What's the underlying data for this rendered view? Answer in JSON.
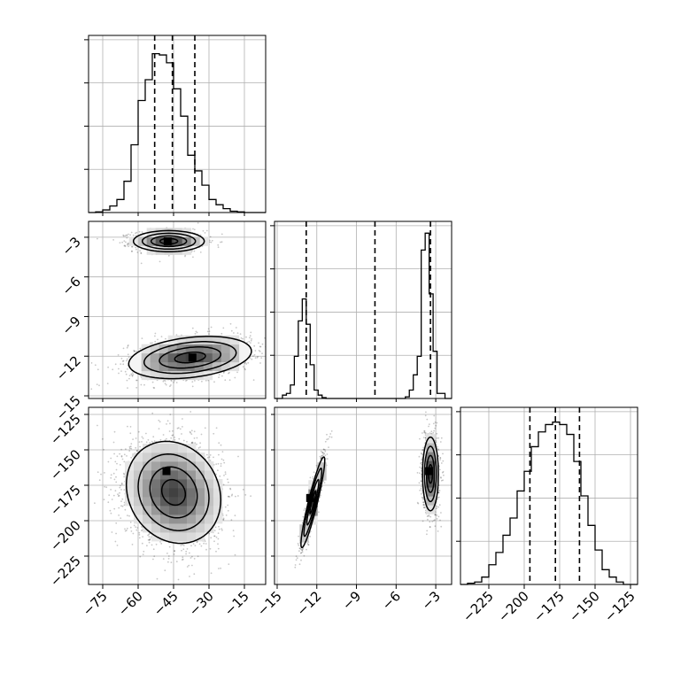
{
  "chart_data": {
    "type": "corner",
    "parameters": [
      {
        "ticks": [
          -75,
          -60,
          -45,
          -30,
          -15
        ],
        "range": [
          -81,
          -6
        ]
      },
      {
        "ticks": [
          -15,
          -12,
          -9,
          -6,
          -3
        ],
        "range": [
          -15.2,
          -1.8
        ]
      },
      {
        "ticks": [
          -225,
          -200,
          -175,
          -150,
          -125
        ],
        "range": [
          -245,
          -120
        ]
      }
    ],
    "tick_labels": {
      "p0": [
        "−75",
        "−60",
        "−45",
        "−30",
        "−15"
      ],
      "p1": [
        "−15",
        "−12",
        "−9",
        "−6",
        "−3"
      ],
      "p2": [
        "−225",
        "−200",
        "−175",
        "−150",
        "−125"
      ]
    },
    "histograms": [
      {
        "edges": [
          -81,
          -78,
          -75,
          -72,
          -69,
          -66,
          -63,
          -60,
          -57,
          -54,
          -51,
          -48,
          -45,
          -42,
          -39,
          -36,
          -33,
          -30,
          -27,
          -24,
          -21,
          -18,
          -15,
          -12,
          -9,
          -6
        ],
        "counts": [
          0,
          0.005,
          0.02,
          0.05,
          0.1,
          0.24,
          0.52,
          0.86,
          1.02,
          1.22,
          1.21,
          1.15,
          0.95,
          0.74,
          0.44,
          0.32,
          0.21,
          0.1,
          0.06,
          0.03,
          0.01,
          0.005,
          0,
          0,
          0
        ],
        "ylim": [
          0,
          1.36
        ],
        "quantiles": [
          -53,
          -45.5,
          -36
        ]
      },
      {
        "edges": [
          -15.2,
          -14.9,
          -14.6,
          -14.3,
          -14.0,
          -13.7,
          -13.4,
          -13.1,
          -12.8,
          -12.5,
          -12.2,
          -11.9,
          -11.6,
          -11.3,
          -11.0,
          -10.7,
          -10.4,
          -10.1,
          -9.8,
          -9.5,
          -9.2,
          -8.9,
          -8.6,
          -8.3,
          -8.0,
          -7.7,
          -7.4,
          -7.1,
          -6.8,
          -6.5,
          -6.2,
          -5.9,
          -5.6,
          -5.3,
          -5.0,
          -4.7,
          -4.4,
          -4.1,
          -3.8,
          -3.5,
          -3.2,
          -2.9,
          -2.6,
          -2.3,
          -2.0,
          -1.8
        ],
        "counts": [
          0,
          0,
          0.02,
          0.03,
          0.08,
          0.25,
          0.46,
          0.59,
          0.44,
          0.2,
          0.05,
          0.02,
          0.005,
          0,
          0,
          0,
          0,
          0,
          0,
          0,
          0,
          0,
          0,
          0,
          0,
          0,
          0,
          0,
          0,
          0,
          0,
          0,
          0,
          0.01,
          0.05,
          0.14,
          0.25,
          0.88,
          0.98,
          0.62,
          0.28,
          0.03,
          0.03,
          0,
          0
        ],
        "ylim": [
          0,
          1.05
        ],
        "quantiles": [
          -12.8,
          -7.6,
          -3.4
        ]
      },
      {
        "edges": [
          -245,
          -240,
          -235,
          -230,
          -225,
          -220,
          -215,
          -210,
          -205,
          -200,
          -195,
          -190,
          -185,
          -180,
          -175,
          -170,
          -165,
          -160,
          -155,
          -150,
          -145,
          -140,
          -135,
          -130,
          -125,
          -120
        ],
        "counts": [
          0,
          0.005,
          0.01,
          0.03,
          0.08,
          0.13,
          0.2,
          0.27,
          0.38,
          0.46,
          0.56,
          0.62,
          0.65,
          0.66,
          0.65,
          0.61,
          0.5,
          0.36,
          0.24,
          0.14,
          0.06,
          0.03,
          0.01,
          0,
          0
        ],
        "ylim": [
          0,
          0.72
        ],
        "quantiles": [
          -196,
          -178,
          -161
        ]
      }
    ],
    "scatter_blobs": [
      {
        "pair": "p1_vs_p0",
        "x": -47,
        "y": -3.3,
        "sx": 7.5,
        "sy": 0.4,
        "rho": 0,
        "n": 1100
      },
      {
        "pair": "p1_vs_p0",
        "x": -38,
        "y": -12.1,
        "sx": 13,
        "sy": 0.8,
        "rho": 0.3,
        "n": 1500
      },
      {
        "pair": "p2_vs_p0",
        "x": -45,
        "y": -180,
        "sx": 10,
        "sy": 18,
        "rho": -0.15,
        "n": 2600
      },
      {
        "pair": "p2_vs_p1",
        "x": -12.3,
        "y": -187,
        "sx": 0.45,
        "sy": 16,
        "rho": 0.92,
        "n": 1100
      },
      {
        "pair": "p2_vs_p1",
        "x": -3.4,
        "y": -167,
        "sx": 0.3,
        "sy": 13,
        "rho": 0,
        "n": 1400
      }
    ],
    "peaks": [
      {
        "pair": "p1_vs_p0",
        "x": -47.5,
        "y": -3.3
      },
      {
        "pair": "p1_vs_p0",
        "x": -37,
        "y": -12.1
      },
      {
        "pair": "p2_vs_p0",
        "x": -48,
        "y": -165
      },
      {
        "pair": "p2_vs_p1",
        "x": -12.5,
        "y": -184
      },
      {
        "pair": "p2_vs_p1",
        "x": -3.5,
        "y": -165
      }
    ],
    "grid": true
  }
}
